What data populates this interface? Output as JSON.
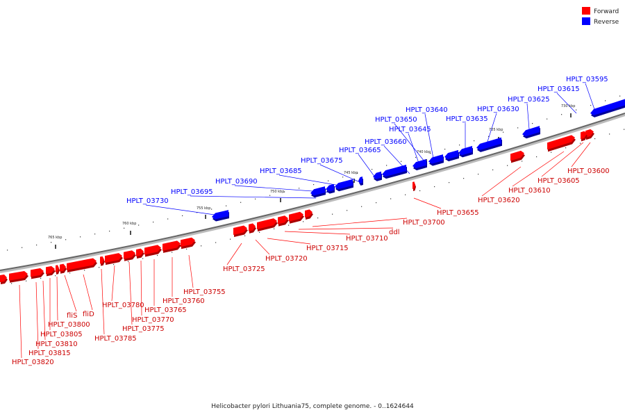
{
  "legend": {
    "forward": {
      "label": "Forward",
      "color": "#ff0000"
    },
    "reverse": {
      "label": "Reverse",
      "color": "#0000ff"
    }
  },
  "caption": "Helicobacter pylori Lithuania75, complete genome. - 0..1624644",
  "ticks": [
    "765 kbp",
    "760 kbp",
    "755 kbp",
    "750 kbp",
    "745 kbp",
    "740 kbp",
    "735 kbp",
    "730 kbp"
  ],
  "reverse_labels": [
    "HPLT_03595",
    "HPLT_03615",
    "HPLT_03625",
    "HPLT_03630",
    "HPLT_03635",
    "HPLT_03640",
    "HPLT_03650",
    "HPLT_03645",
    "HPLT_03660",
    "HPLT_03665",
    "HPLT_03675",
    "HPLT_03685",
    "HPLT_03690",
    "HPLT_03695",
    "HPLT_03730"
  ],
  "forward_labels": [
    "HPLT_03600",
    "HPLT_03605",
    "HPLT_03610",
    "HPLT_03620",
    "HPLT_03655",
    "HPLT_03700",
    "ddl",
    "HPLT_03710",
    "HPLT_03715",
    "HPLT_03720",
    "HPLT_03725",
    "HPLT_03755",
    "HPLT_03760",
    "HPLT_03765",
    "HPLT_03770",
    "HPLT_03775",
    "HPLT_03780",
    "HPLT_03785",
    "fliD",
    "fliS",
    "HPLT_03800",
    "HPLT_03805",
    "HPLT_03810",
    "HPLT_03815",
    "HPLT_03820"
  ]
}
